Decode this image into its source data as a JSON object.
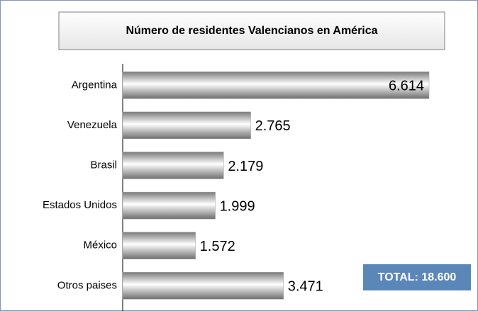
{
  "chart_data": {
    "type": "bar",
    "orientation": "horizontal",
    "title": "Número de residentes Valencianos en América",
    "categories": [
      "Argentina",
      "Venezuela",
      "Brasil",
      "Estados Unidos",
      "México",
      "Otros paises"
    ],
    "values": [
      6614,
      2765,
      2179,
      1999,
      1572,
      3471
    ],
    "value_labels": [
      "6.614",
      "2.765",
      "2.179",
      "1.999",
      "1.572",
      "3.471"
    ],
    "annotation": "TOTAL: 18.600",
    "color": "#a6a6a6"
  }
}
